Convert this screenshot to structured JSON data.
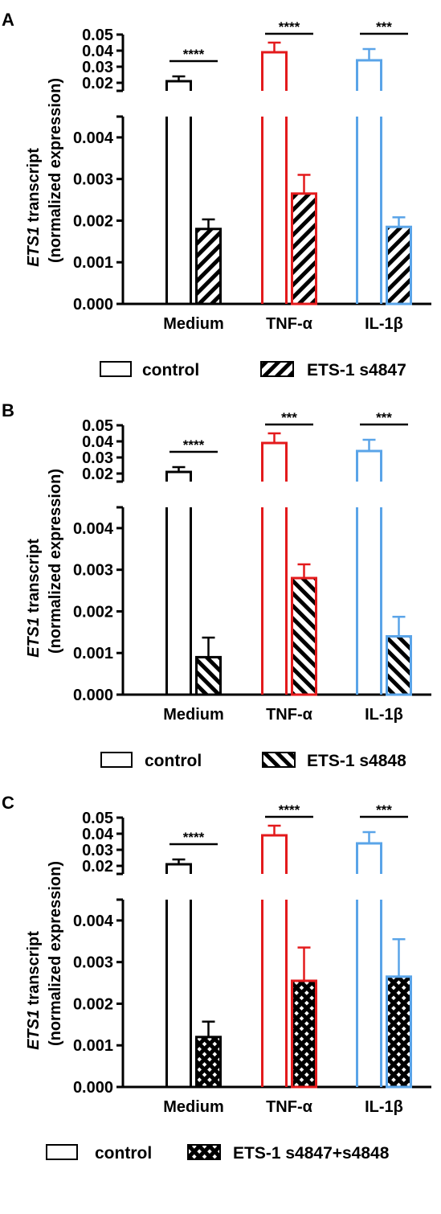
{
  "colors": {
    "axis": "#000000",
    "Medium": "#000000",
    "TNF-α": "#e31a1c",
    "IL-1β": "#5aa4e8"
  },
  "chart_data": [
    {
      "type": "bar",
      "panel_label": "A",
      "ylabel_italic": "ETS1",
      "ylabel_rest": " transcript",
      "ylabel_line2": "(normalized expression)",
      "categories": [
        "Medium",
        "TNF-α",
        "IL-1β"
      ],
      "upper_axis": {
        "ylim": [
          0.015,
          0.05
        ],
        "ticks": [
          "0.05",
          "0.04",
          "0.03",
          "0.02"
        ]
      },
      "lower_axis": {
        "ylim": [
          0,
          0.0045
        ],
        "ticks": [
          "0.004",
          "0.003",
          "0.002",
          "0.001",
          "0.000"
        ]
      },
      "series": [
        {
          "name": "control",
          "pattern": "open",
          "values": [
            0.021,
            0.039,
            0.034
          ],
          "errors": [
            0.003,
            0.006,
            0.007
          ]
        },
        {
          "name": "ETS-1 s4847",
          "pattern": "hatch-forward",
          "values": [
            0.0018,
            0.00265,
            0.00185
          ],
          "errors": [
            0.00023,
            0.00045,
            0.00023
          ]
        }
      ],
      "significance": [
        "****",
        "****",
        "***"
      ],
      "legend": [
        "control",
        "ETS-1 s4847"
      ],
      "legend_position": "bottom-right"
    },
    {
      "type": "bar",
      "panel_label": "B",
      "ylabel_italic": "ETS1",
      "ylabel_rest": " transcript",
      "ylabel_line2": "(normalized expression)",
      "categories": [
        "Medium",
        "TNF-α",
        "IL-1β"
      ],
      "upper_axis": {
        "ylim": [
          0.015,
          0.05
        ],
        "ticks": [
          "0.05",
          "0.04",
          "0.03",
          "0.02"
        ]
      },
      "lower_axis": {
        "ylim": [
          0,
          0.0045
        ],
        "ticks": [
          "0.004",
          "0.003",
          "0.002",
          "0.001",
          "0.000"
        ]
      },
      "series": [
        {
          "name": "control",
          "pattern": "open",
          "values": [
            0.021,
            0.039,
            0.034
          ],
          "errors": [
            0.003,
            0.006,
            0.007
          ]
        },
        {
          "name": "ETS-1 s4848",
          "pattern": "hatch-back",
          "values": [
            0.0009,
            0.0028,
            0.0014
          ],
          "errors": [
            0.00047,
            0.00033,
            0.00047
          ]
        }
      ],
      "significance": [
        "****",
        "***",
        "***"
      ],
      "legend": [
        "control",
        "ETS-1 s4848"
      ],
      "legend_position": "bottom-right"
    },
    {
      "type": "bar",
      "panel_label": "C",
      "ylabel_italic": "ETS1",
      "ylabel_rest": " transcript",
      "ylabel_line2": "(normalized expression)",
      "categories": [
        "Medium",
        "TNF-α",
        "IL-1β"
      ],
      "upper_axis": {
        "ylim": [
          0.015,
          0.05
        ],
        "ticks": [
          "0.05",
          "0.04",
          "0.03",
          "0.02"
        ]
      },
      "lower_axis": {
        "ylim": [
          0,
          0.0045
        ],
        "ticks": [
          "0.004",
          "0.003",
          "0.002",
          "0.001",
          "0.000"
        ]
      },
      "series": [
        {
          "name": "control",
          "pattern": "open",
          "values": [
            0.021,
            0.039,
            0.034
          ],
          "errors": [
            0.003,
            0.006,
            0.007
          ]
        },
        {
          "name": "ETS-1 s4847+s4848",
          "pattern": "crosshatch",
          "values": [
            0.0012,
            0.00255,
            0.00265
          ],
          "errors": [
            0.00037,
            0.0008,
            0.0009
          ]
        }
      ],
      "significance": [
        "****",
        "****",
        "***"
      ],
      "legend": [
        "control",
        "ETS-1 s4847+s4848"
      ],
      "legend_position": "bottom"
    }
  ]
}
